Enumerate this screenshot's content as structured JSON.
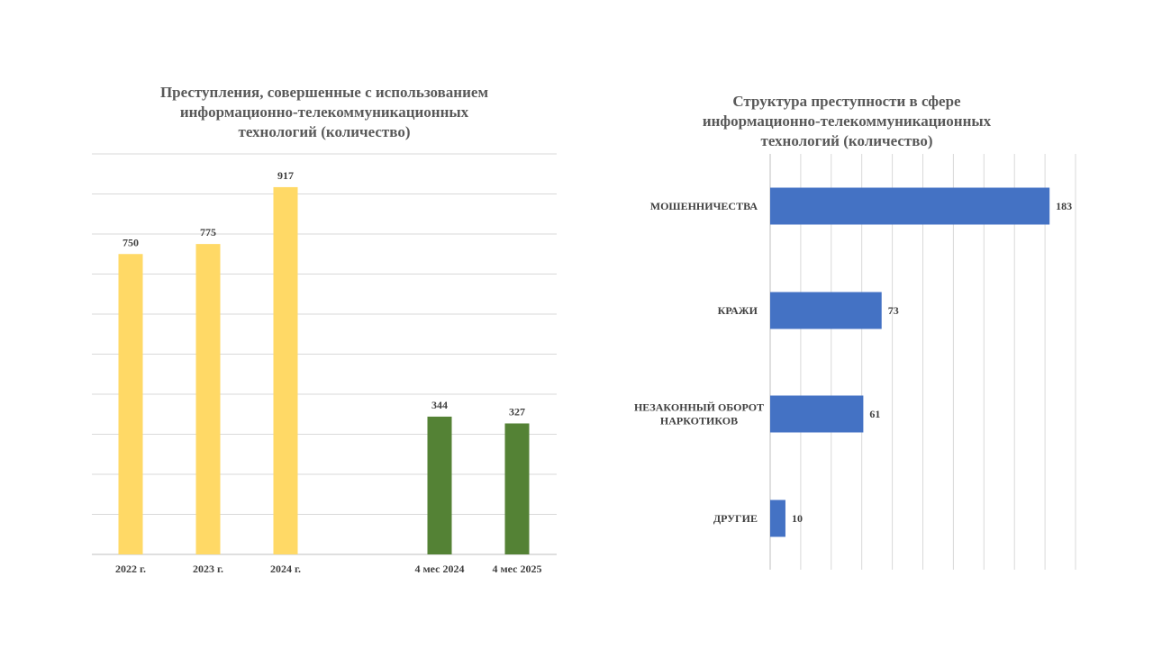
{
  "chart_data": [
    {
      "type": "bar",
      "title": "Преступления, совершенные с использованием\nинформационно-телекоммуникационных\nтехнологий (количество)",
      "categories": [
        "2022 г.",
        "2023 г.",
        "2024 г.",
        "4 мес 2024",
        "4 мес 2025"
      ],
      "values": [
        750,
        775,
        917,
        344,
        327
      ],
      "value_labels": [
        "750",
        "775",
        "917",
        "344",
        "327"
      ],
      "bar_colors": [
        "#FFD966",
        "#FFD966",
        "#FFD966",
        "#548235",
        "#548235"
      ],
      "ylim": [
        0,
        1000
      ],
      "grid": true
    },
    {
      "type": "bar",
      "orientation": "horizontal",
      "title": "Структура преступности в сфере\nинформационно-телекоммуникационных\nтехнологий (количество)",
      "categories": [
        "МОШЕННИЧЕСТВА",
        "КРАЖИ",
        "НЕЗАКОННЫЙ  ОБОРОТ\nНАРКОТИКОВ",
        "ДРУГИЕ"
      ],
      "values": [
        183,
        73,
        61,
        10
      ],
      "value_labels": [
        "183",
        "73",
        "61",
        "10"
      ],
      "bar_color": "#4472C4",
      "xlim": [
        0,
        200
      ],
      "grid": true
    }
  ]
}
